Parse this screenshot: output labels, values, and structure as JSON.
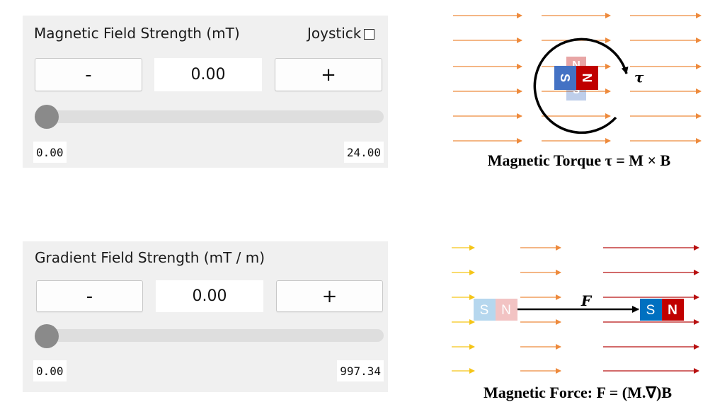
{
  "magnetic_panel": {
    "title": "Magnetic Field Strength (mT)",
    "joystick_label": "Joystick",
    "joystick_checked": false,
    "minus_label": "-",
    "value": "0.00",
    "plus_label": "+",
    "slider_fraction": 0,
    "min_label": "0.00",
    "max_label": "24.00"
  },
  "gradient_panel": {
    "title": "Gradient Field Strength (mT / m)",
    "minus_label": "-",
    "value": "0.00",
    "plus_label": "+",
    "slider_fraction": 0,
    "min_label": "0.00",
    "max_label": "997.34"
  },
  "torque_diagram": {
    "torque_symbol": "τ",
    "magnet_n": "N",
    "magnet_s": "S",
    "caption": "Magnetic Torque τ = M × B"
  },
  "force_diagram": {
    "force_symbol": "F",
    "magnet_s": "S",
    "magnet_n": "N",
    "caption": "Magnetic Force: F = (M.∇)B"
  },
  "colors": {
    "panel_bg": "#f0f0f0",
    "orange_arrow": "#ee8a3c",
    "yellow_arrow": "#f5c518",
    "dark_red_arrow": "#b81010",
    "magnet_north": "#c00000",
    "magnet_south": "#4472c4",
    "magnet_south_alt": "#0070c0"
  }
}
